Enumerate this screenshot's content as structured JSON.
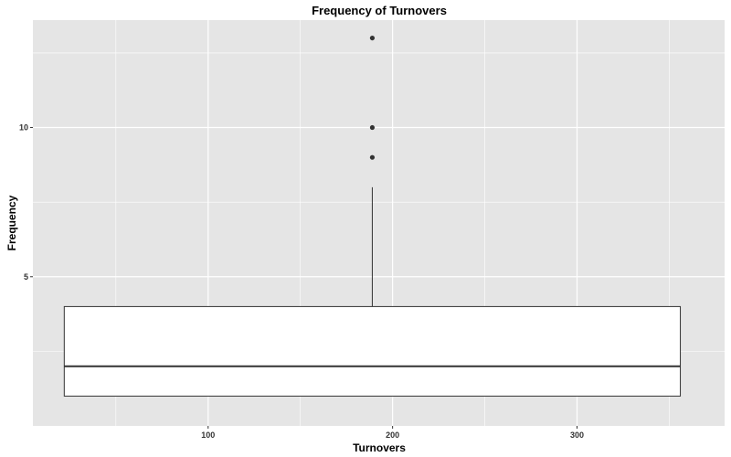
{
  "chart_data": {
    "type": "boxplot",
    "title": "Frequency of Turnovers",
    "xlabel": "Turnovers",
    "ylabel": "Frequency",
    "xlim": [
      5,
      380
    ],
    "ylim": [
      0,
      13.6
    ],
    "x_ticks": [
      100,
      200,
      300
    ],
    "x_minor_ticks": [
      50,
      150,
      250,
      350
    ],
    "y_ticks": [
      5,
      10
    ],
    "y_minor_ticks": [
      2.5,
      7.5,
      12.5
    ],
    "grid": true,
    "box": {
      "x_left": 22,
      "x_right": 356,
      "x_center": 189,
      "q1": 1,
      "median": 2,
      "q3": 4,
      "whisker_low": 1,
      "whisker_high": 8
    },
    "outliers": [
      9,
      10,
      13
    ],
    "colors": {
      "panel_background": "#e5e5e5",
      "grid": "#ffffff",
      "box_fill": "#ffffff",
      "box_stroke": "#333333",
      "outlier": "#333333"
    }
  }
}
